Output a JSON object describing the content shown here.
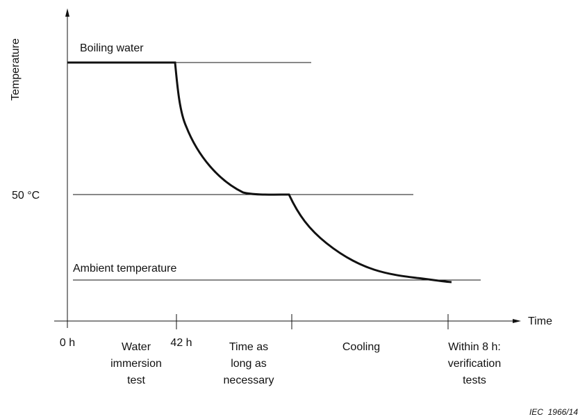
{
  "axes": {
    "y_label": "Temperature",
    "x_label": "Time"
  },
  "levels": {
    "boiling": "Boiling water",
    "fifty": "50 °C",
    "ambient": "Ambient temperature"
  },
  "ticks": [
    "0 h",
    "42 h"
  ],
  "phases": [
    [
      "Water",
      "immersion",
      "test"
    ],
    [
      "Time as",
      "long as",
      "necessary"
    ],
    [
      "Cooling"
    ],
    [
      "Within 8 h:",
      "verification",
      "tests"
    ]
  ],
  "reference": "IEC  1966/14"
}
